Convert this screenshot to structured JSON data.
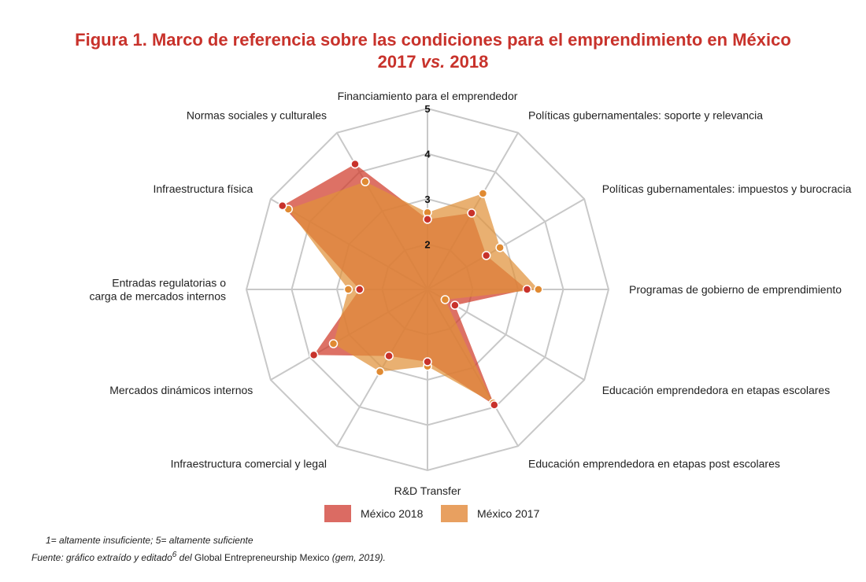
{
  "title": {
    "line1": "Figura 1. Marco de referencia sobre las condiciones para el emprendimiento en México",
    "line2_pre": "2017 ",
    "line2_em": "vs.",
    "line2_post": " 2018"
  },
  "colors": {
    "title": "#c8322b",
    "grid": "#c8c8c8",
    "series_2018_fill": "#d03a2a",
    "series_2018_point": "#c8322b",
    "series_2017_fill": "#e0923a",
    "series_2017_point": "#e08a32",
    "legend_2018": "#db6b63",
    "legend_2017": "#e8a060"
  },
  "chart_data": {
    "type": "radar",
    "title": "Figura 1. Marco de referencia sobre las condiciones para el emprendimiento en México 2017 vs. 2018",
    "categories": [
      "Financiamiento para el emprendedor",
      "Políticas gubernamentales: soporte y relevancia",
      "Políticas gubernamentales: impuestos y burocracia",
      "Programas de gobierno de emprendimiento",
      "Educación emprendedora en etapas escolares",
      "Educación emprendedora en etapas post escolares",
      "R&D Transfer",
      "Infraestructura comercial y legal",
      "Mercados dinámicos internos",
      "Entradas regulatorias o carga de mercados internos",
      "Infraestructura física",
      "Normas sociales y culturales"
    ],
    "axis_label_lines": [
      [
        "Financiamiento para el emprendedor"
      ],
      [
        "Políticas gubernamentales: soporte y relevancia"
      ],
      [
        "Políticas gubernamentales: impuestos y burocracia"
      ],
      [
        "Programas de gobierno de emprendimiento"
      ],
      [
        "Educación emprendedora en etapas escolares"
      ],
      [
        "Educación emprendedora en etapas post escolares"
      ],
      [
        "R&D Transfer"
      ],
      [
        "Infraestructura comercial y legal"
      ],
      [
        "Mercados dinámicos internos"
      ],
      [
        "Entradas regulatorias o",
        "carga de mercados internos"
      ],
      [
        "Infraestructura física"
      ],
      [
        "Normas sociales y culturales"
      ]
    ],
    "ticks": [
      1,
      2,
      3,
      4,
      5
    ],
    "tick_labels": [
      "2",
      "3",
      "4",
      "5"
    ],
    "range": [
      1,
      5
    ],
    "series": [
      {
        "name": "México 2018",
        "values": [
          2.55,
          2.95,
          2.5,
          3.2,
          1.7,
          3.95,
          2.6,
          2.7,
          3.9,
          2.5,
          4.7,
          4.2
        ]
      },
      {
        "name": "México 2017",
        "values": [
          2.7,
          3.45,
          2.85,
          3.45,
          1.45,
          3.9,
          2.7,
          3.1,
          3.4,
          2.75,
          4.55,
          3.75
        ]
      }
    ]
  },
  "legend": {
    "items": [
      {
        "label": "México 2018"
      },
      {
        "label": "México 2017"
      }
    ]
  },
  "notes": {
    "scale": "1= altamente insuficiente; 5= altamente suficiente",
    "source_a": "Fuente: gráfico extraído y editado",
    "source_sup": "6",
    "source_b": " del ",
    "source_c": "Global Entrepreneurship Mexico",
    "source_d": " (gem, 2019)."
  }
}
